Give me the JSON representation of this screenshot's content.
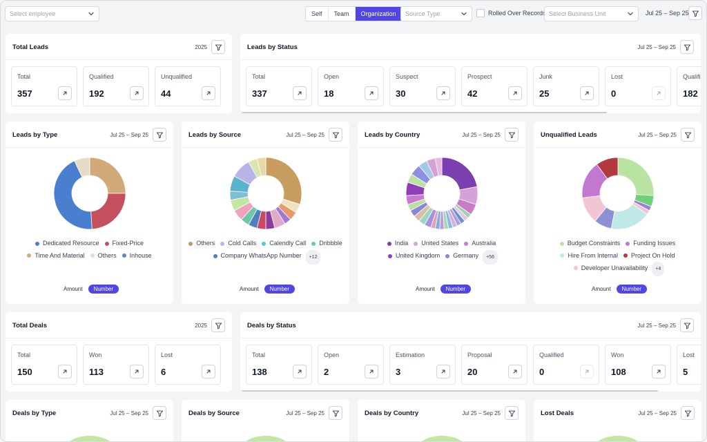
{
  "filters": {
    "employee_placeholder": "Select employee",
    "scope_options": [
      "Self",
      "Team",
      "Organization"
    ],
    "scope_selected": "Organization",
    "source_type_placeholder": "Source Type",
    "rolled_over_label": "Rolled Over Records",
    "business_unit_placeholder": "Select Business Unit",
    "date_range": "Jul 25 – Sep 25"
  },
  "colors": {
    "accent": "#4f46e5"
  },
  "total_leads": {
    "title": "Total Leads",
    "year": "2025",
    "stats": [
      {
        "label": "Total",
        "value": "357"
      },
      {
        "label": "Qualified",
        "value": "192"
      },
      {
        "label": "Unqualified",
        "value": "44"
      }
    ]
  },
  "leads_by_status": {
    "title": "Leads by Status",
    "date": "Jul 25 – Sep 25",
    "stats": [
      {
        "label": "Total",
        "value": "337"
      },
      {
        "label": "Open",
        "value": "18"
      },
      {
        "label": "Suspect",
        "value": "30"
      },
      {
        "label": "Prospect",
        "value": "42"
      },
      {
        "label": "Junk",
        "value": "25"
      },
      {
        "label": "Lost",
        "value": "0"
      },
      {
        "label": "Qualified",
        "value": "182"
      }
    ]
  },
  "toggle": {
    "amount": "Amount",
    "number": "Number"
  },
  "donut_cards": [
    {
      "title": "Leads by Type",
      "date": "Jul 25 – Sep 25",
      "legend": [
        {
          "label": "Dedicated Resource",
          "color": "#4a7fcf"
        },
        {
          "label": "Fixed-Price",
          "color": "#c4505e"
        },
        {
          "label": "Time And Material",
          "color": "#d2aa79"
        },
        {
          "label": "Others",
          "color": "#e8dcc6"
        },
        {
          "label": "Inhouse",
          "color": "#5b89c9"
        }
      ],
      "more": "",
      "slices": [
        {
          "value": 25,
          "color": "#d2aa79"
        },
        {
          "value": 24,
          "color": "#c4505e"
        },
        {
          "value": 44,
          "color": "#4a7fcf"
        },
        {
          "value": 7,
          "color": "#e8dcc6"
        }
      ]
    },
    {
      "title": "Leads by Source",
      "date": "Jul 25 – Sep 25",
      "legend": [
        {
          "label": "Others",
          "color": "#c29a5c"
        },
        {
          "label": "Cold Calls",
          "color": "#b8b4e8"
        },
        {
          "label": "Calendly Call",
          "color": "#5cc3d3"
        },
        {
          "label": "Dribbble",
          "color": "#6fc9a9"
        },
        {
          "label": "Company WhatsApp Number",
          "color": "#4e7fbf"
        }
      ],
      "more": "+12",
      "slices": [
        {
          "value": 30,
          "color": "#c69c5f"
        },
        {
          "value": 4,
          "color": "#efe2c2"
        },
        {
          "value": 4,
          "color": "#e79b6b"
        },
        {
          "value": 3,
          "color": "#9b7bd6"
        },
        {
          "value": 5,
          "color": "#e3a9c9"
        },
        {
          "value": 4,
          "color": "#8a3d9c"
        },
        {
          "value": 4,
          "color": "#c94a5f"
        },
        {
          "value": 4,
          "color": "#4e7fbf"
        },
        {
          "value": 4,
          "color": "#6fc9a9"
        },
        {
          "value": 5,
          "color": "#f0a0c0"
        },
        {
          "value": 5,
          "color": "#c5e6a0"
        },
        {
          "value": 4,
          "color": "#7cc0d8"
        },
        {
          "value": 7,
          "color": "#5cb3d0"
        },
        {
          "value": 9,
          "color": "#b8b4e8"
        },
        {
          "value": 4,
          "color": "#d8e5b0"
        },
        {
          "value": 4,
          "color": "#e8d8a8"
        }
      ]
    },
    {
      "title": "Leads by Country",
      "date": "Jul 25 – Sep 25",
      "legend": [
        {
          "label": "India",
          "color": "#7b3fb0"
        },
        {
          "label": "United States",
          "color": "#d7a1d8"
        },
        {
          "label": "Australia",
          "color": "#c87bc8"
        },
        {
          "label": "United Kingdom",
          "color": "#8e3fb6"
        },
        {
          "label": "Germany",
          "color": "#8a86d8"
        }
      ],
      "more": "+56",
      "slices": [
        {
          "value": 22,
          "color": "#7b3fb0"
        },
        {
          "value": 8,
          "color": "#d7a1d8"
        },
        {
          "value": 5,
          "color": "#c87bc8"
        },
        {
          "value": 2,
          "color": "#9fd0a8"
        },
        {
          "value": 2,
          "color": "#e2c6e8"
        },
        {
          "value": 2,
          "color": "#6e8fd0"
        },
        {
          "value": 2,
          "color": "#b0a0e0"
        },
        {
          "value": 2,
          "color": "#d2b0d8"
        },
        {
          "value": 2,
          "color": "#8fb8e0"
        },
        {
          "value": 2,
          "color": "#a8d8b8"
        },
        {
          "value": 2,
          "color": "#c09adc"
        },
        {
          "value": 2,
          "color": "#7fb0d8"
        },
        {
          "value": 2,
          "color": "#e0a0b8"
        },
        {
          "value": 3,
          "color": "#a88fd8"
        },
        {
          "value": 3,
          "color": "#9bd8c0"
        },
        {
          "value": 3,
          "color": "#d8c0a0"
        },
        {
          "value": 3,
          "color": "#8a86d8"
        },
        {
          "value": 3,
          "color": "#b8e0a0"
        },
        {
          "value": 4,
          "color": "#c87ad0"
        },
        {
          "value": 6,
          "color": "#8e3fb6"
        },
        {
          "value": 4,
          "color": "#b9e3a3"
        },
        {
          "value": 5,
          "color": "#8f8fe0"
        },
        {
          "value": 4,
          "color": "#a0c8e8"
        },
        {
          "value": 4,
          "color": "#d7a1d8"
        },
        {
          "value": 3,
          "color": "#e8b8e0"
        }
      ]
    },
    {
      "title": "Unqualified Leads",
      "date": "Jul 25 – Sep 25",
      "legend": [
        {
          "label": "Budget Constraints",
          "color": "#b9e3a3"
        },
        {
          "label": "Funding Issues",
          "color": "#c277d1"
        },
        {
          "label": "Hire From Internal",
          "color": "#bfe8e6"
        },
        {
          "label": "Project On Hold",
          "color": "#b13a3f"
        },
        {
          "label": "Developer Unavailability",
          "color": "#f1c5d3"
        }
      ],
      "more": "+4",
      "slices": [
        {
          "value": 26,
          "color": "#b9e3a3"
        },
        {
          "value": 5,
          "color": "#6fd07a"
        },
        {
          "value": 2,
          "color": "#9b7fd6"
        },
        {
          "value": 2,
          "color": "#efc7d8"
        },
        {
          "value": 18,
          "color": "#bfe8e6"
        },
        {
          "value": 8,
          "color": "#8a8fd6"
        },
        {
          "value": 12,
          "color": "#f1c5d3"
        },
        {
          "value": 17,
          "color": "#c277d1"
        },
        {
          "value": 10,
          "color": "#b13a3f"
        }
      ]
    }
  ],
  "total_deals": {
    "title": "Total Deals",
    "year": "2025",
    "stats": [
      {
        "label": "Total",
        "value": "150"
      },
      {
        "label": "Won",
        "value": "113"
      },
      {
        "label": "Lost",
        "value": "6"
      }
    ]
  },
  "deals_by_status": {
    "title": "Deals by Status",
    "date": "Jul 25 – Sep 25",
    "stats": [
      {
        "label": "Total",
        "value": "138"
      },
      {
        "label": "Open",
        "value": "2"
      },
      {
        "label": "Estimation",
        "value": "3"
      },
      {
        "label": "Proposal",
        "value": "20"
      },
      {
        "label": "Qualified",
        "value": "0"
      },
      {
        "label": "Won",
        "value": "108"
      },
      {
        "label": "Lost",
        "value": "5"
      }
    ]
  },
  "bottom_cards": [
    {
      "title": "Deals by Type",
      "date": "Jul 25 – Sep 25"
    },
    {
      "title": "Deals by Source",
      "date": "Jul 25 – Sep 25"
    },
    {
      "title": "Deals by Country",
      "date": "Jul 25 – Sep 25"
    },
    {
      "title": "Lost Deals",
      "date": "Jul 25 – Sep 25"
    }
  ]
}
